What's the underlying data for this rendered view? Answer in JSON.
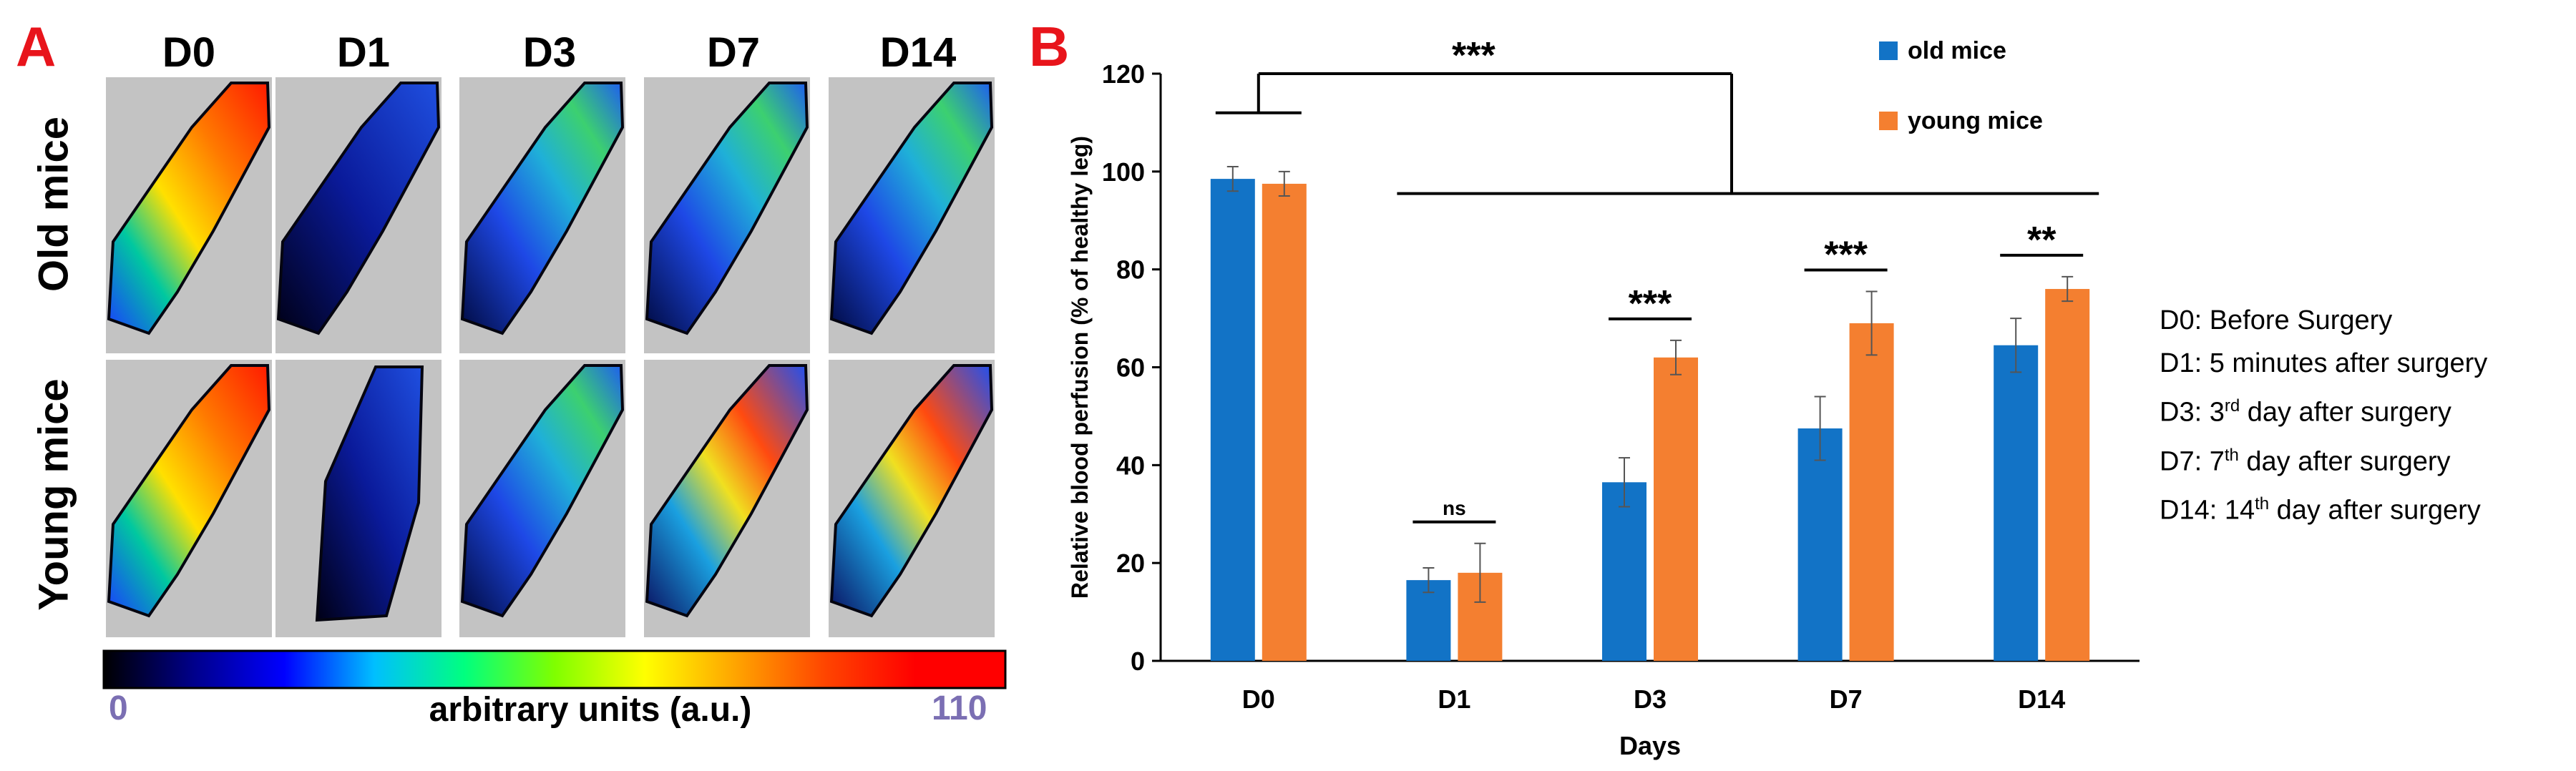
{
  "panel_a": {
    "letter": "A",
    "columns": [
      "D0",
      "D1",
      "D3",
      "D7",
      "D14"
    ],
    "rows": [
      "Old mice",
      "Young mice"
    ],
    "colorbar": {
      "min_label": "0",
      "max_label": "110",
      "title": "arbitrary units (a.u.)",
      "stops": [
        "#000000",
        "#00008b",
        "#0000ff",
        "#00bfff",
        "#00ff7f",
        "#7fff00",
        "#ffff00",
        "#ffa500",
        "#ff4500",
        "#ff0000",
        "#ff0000"
      ]
    }
  },
  "panel_b": {
    "letter": "B"
  },
  "chart_data": {
    "type": "bar",
    "categories": [
      "D0",
      "D1",
      "D3",
      "D7",
      "D14"
    ],
    "series": [
      {
        "name": "old mice",
        "color": "#1273c6",
        "values": [
          98.5,
          16.5,
          36.5,
          47.5,
          64.5
        ],
        "errors": [
          2.5,
          2.5,
          5,
          6.5,
          5.5
        ]
      },
      {
        "name": "young mice",
        "color": "#f47f30",
        "values": [
          97.5,
          18,
          62,
          69,
          76
        ],
        "errors": [
          2.5,
          6,
          3.5,
          6.5,
          2.5
        ]
      }
    ],
    "xlabel": "Days",
    "ylabel": "Relative blood perfusion (% of healthy leg)",
    "ylim": [
      0,
      120
    ],
    "yticks": [
      "0",
      "20",
      "40",
      "60",
      "80",
      "100",
      "120"
    ],
    "significance": [
      {
        "category": "D1",
        "label": "ns"
      },
      {
        "category": "D3",
        "label": "***"
      },
      {
        "category": "D7",
        "label": "***"
      },
      {
        "category": "D14",
        "label": "**"
      }
    ],
    "overall_significance": "***",
    "legend_placement": "top-right",
    "grid": false
  },
  "notes": [
    {
      "text": "D0: Before Surgery"
    },
    {
      "pre": "D1: 5 minutes after surgery"
    },
    {
      "pre": "D3: 3",
      "sup": "rd",
      "post": " day after surgery"
    },
    {
      "pre": "D7: 7",
      "sup": "th",
      "post": " day after surgery"
    },
    {
      "pre": "D14: 14",
      "sup": "th",
      "post": " day after surgery"
    }
  ]
}
